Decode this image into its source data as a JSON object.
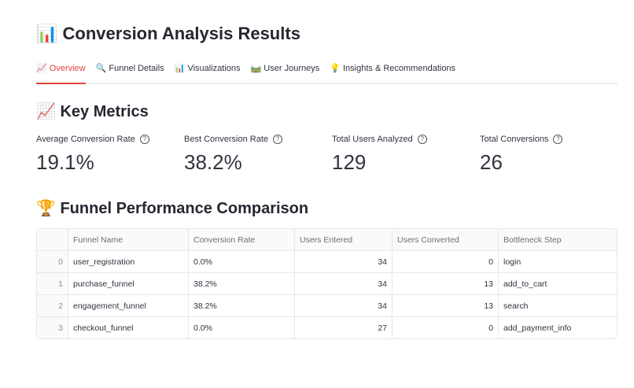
{
  "title": {
    "icon": "📊",
    "text": "Conversion Analysis Results"
  },
  "tabs": [
    {
      "icon": "📈",
      "label": "Overview",
      "active": true
    },
    {
      "icon": "🔍",
      "label": "Funnel Details"
    },
    {
      "icon": "📊",
      "label": "Visualizations"
    },
    {
      "icon": "🛤️",
      "label": "User Journeys"
    },
    {
      "icon": "💡",
      "label": "Insights & Recommendations"
    }
  ],
  "key_metrics": {
    "icon": "📈",
    "heading": "Key Metrics",
    "items": [
      {
        "label": "Average Conversion Rate",
        "value": "19.1%"
      },
      {
        "label": "Best Conversion Rate",
        "value": "38.2%"
      },
      {
        "label": "Total Users Analyzed",
        "value": "129"
      },
      {
        "label": "Total Conversions",
        "value": "26"
      }
    ]
  },
  "comparison": {
    "icon": "🏆",
    "heading": "Funnel Performance Comparison",
    "columns": [
      "",
      "Funnel Name",
      "Conversion Rate",
      "Users Entered",
      "Users Converted",
      "Bottleneck Step"
    ],
    "rows": [
      [
        "0",
        "user_registration",
        "0.0%",
        "34",
        "0",
        "login"
      ],
      [
        "1",
        "purchase_funnel",
        "38.2%",
        "34",
        "13",
        "add_to_cart"
      ],
      [
        "2",
        "engagement_funnel",
        "38.2%",
        "34",
        "13",
        "search"
      ],
      [
        "3",
        "checkout_funnel",
        "0.0%",
        "27",
        "0",
        "add_payment_info"
      ]
    ]
  },
  "colors": {
    "accent": "#e0443e"
  }
}
